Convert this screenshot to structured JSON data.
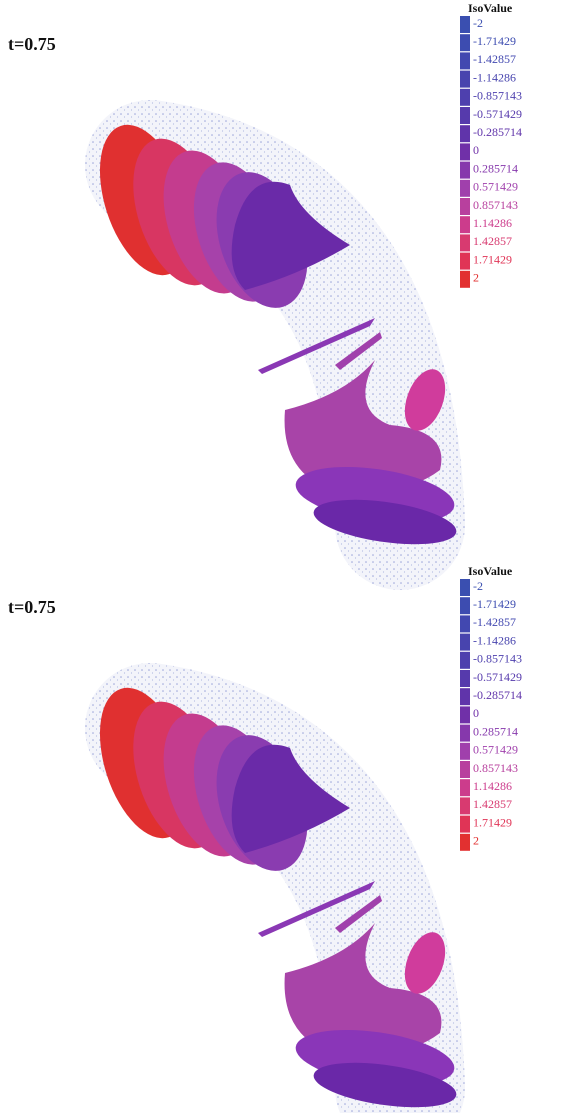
{
  "panels": [
    {
      "label": "t=0.75",
      "legend": {
        "title": "IsoValue",
        "entries": [
          {
            "label": "-2",
            "color": "#3a4fb0"
          },
          {
            "label": "-1.71429",
            "color": "#3d4cb0"
          },
          {
            "label": "-1.42857",
            "color": "#4248b0"
          },
          {
            "label": "-1.14286",
            "color": "#4844ae"
          },
          {
            "label": "-0.857143",
            "color": "#4e40ae"
          },
          {
            "label": "-0.571429",
            "color": "#563aac"
          },
          {
            "label": "-0.285714",
            "color": "#6034aa"
          },
          {
            "label": "0",
            "color": "#7030a8"
          },
          {
            "label": "0.285714",
            "color": "#8638ac"
          },
          {
            "label": "0.571429",
            "color": "#a040ac"
          },
          {
            "label": "0.857143",
            "color": "#b8409e"
          },
          {
            "label": "1.14286",
            "color": "#cc3c8c"
          },
          {
            "label": "1.42857",
            "color": "#d83a70"
          },
          {
            "label": "1.71429",
            "color": "#e03456"
          },
          {
            "label": "2",
            "color": "#e23030"
          }
        ]
      }
    },
    {
      "label": "t=0.75",
      "legend": {
        "title": "IsoValue",
        "entries": [
          {
            "label": "-2",
            "color": "#3a4fb0"
          },
          {
            "label": "-1.71429",
            "color": "#3d4cb0"
          },
          {
            "label": "-1.42857",
            "color": "#4248b0"
          },
          {
            "label": "-1.14286",
            "color": "#4844ae"
          },
          {
            "label": "-0.857143",
            "color": "#4e40ae"
          },
          {
            "label": "-0.571429",
            "color": "#563aac"
          },
          {
            "label": "-0.285714",
            "color": "#6034aa"
          },
          {
            "label": "0",
            "color": "#7030a8"
          },
          {
            "label": "0.285714",
            "color": "#8638ac"
          },
          {
            "label": "0.571429",
            "color": "#a040ac"
          },
          {
            "label": "0.857143",
            "color": "#b8409e"
          },
          {
            "label": "1.14286",
            "color": "#cc3c8c"
          },
          {
            "label": "1.42857",
            "color": "#d83a70"
          },
          {
            "label": "1.71429",
            "color": "#e03456"
          },
          {
            "label": "2",
            "color": "#e23030"
          }
        ]
      }
    }
  ]
}
